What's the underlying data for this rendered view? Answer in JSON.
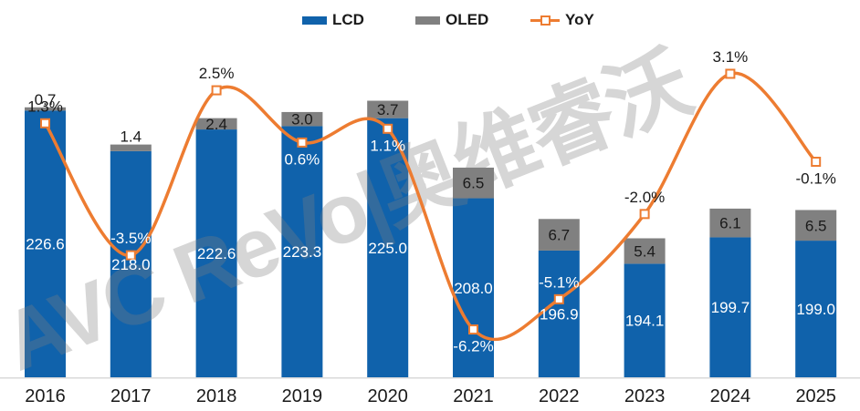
{
  "watermark": {
    "text": "AVC ReVo|奥维睿沃"
  },
  "colors": {
    "lcd": "#1062AB",
    "oled": "#808080",
    "yoy_line": "#ED7C31",
    "axis_line": "#D9D9D9",
    "dark_label": "#1a1a1a",
    "light_label": "#ffffff",
    "watermark_gray": "#808080"
  },
  "chart_data": {
    "type": "bar",
    "subtype": "stacked-bars-with-line-overlay",
    "categories": [
      "2016",
      "2017",
      "2018",
      "2019",
      "2020",
      "2021",
      "2022",
      "2023",
      "2024",
      "2025"
    ],
    "series": [
      {
        "name": "LCD",
        "type": "bar",
        "stacked": true,
        "color": "#1062AB",
        "values": [
          226.6,
          218.0,
          222.6,
          223.3,
          225.0,
          208.0,
          196.9,
          194.1,
          199.7,
          199.0
        ]
      },
      {
        "name": "OLED",
        "type": "bar",
        "stacked": true,
        "color": "#808080",
        "values": [
          0.7,
          1.4,
          2.4,
          3.0,
          3.7,
          6.5,
          6.7,
          5.4,
          6.1,
          6.5
        ]
      },
      {
        "name": "YoY",
        "type": "line",
        "axis": "secondary-percent",
        "color": "#ED7C31",
        "values": [
          1.3,
          -3.5,
          2.5,
          0.6,
          1.1,
          -6.2,
          -5.1,
          -2.0,
          3.1,
          -0.1
        ],
        "label_suffix": "%"
      }
    ],
    "title": "",
    "xlabel": "",
    "ylabel": "",
    "value_axis": {
      "min": 170,
      "max": 230,
      "visible": false
    },
    "percent_axis": {
      "visible": false
    },
    "grid": false,
    "legend_position": "top-center",
    "data_labels": true,
    "yoy_label_layout": [
      {
        "side": "above",
        "color": "dark"
      },
      {
        "side": "above",
        "color": "white"
      },
      {
        "side": "above",
        "color": "dark"
      },
      {
        "side": "below",
        "color": "white"
      },
      {
        "side": "below",
        "color": "white"
      },
      {
        "side": "below",
        "color": "white"
      },
      {
        "side": "above",
        "color": "white"
      },
      {
        "side": "above",
        "color": "dark"
      },
      {
        "side": "above",
        "color": "dark"
      },
      {
        "side": "below",
        "color": "dark"
      }
    ]
  }
}
